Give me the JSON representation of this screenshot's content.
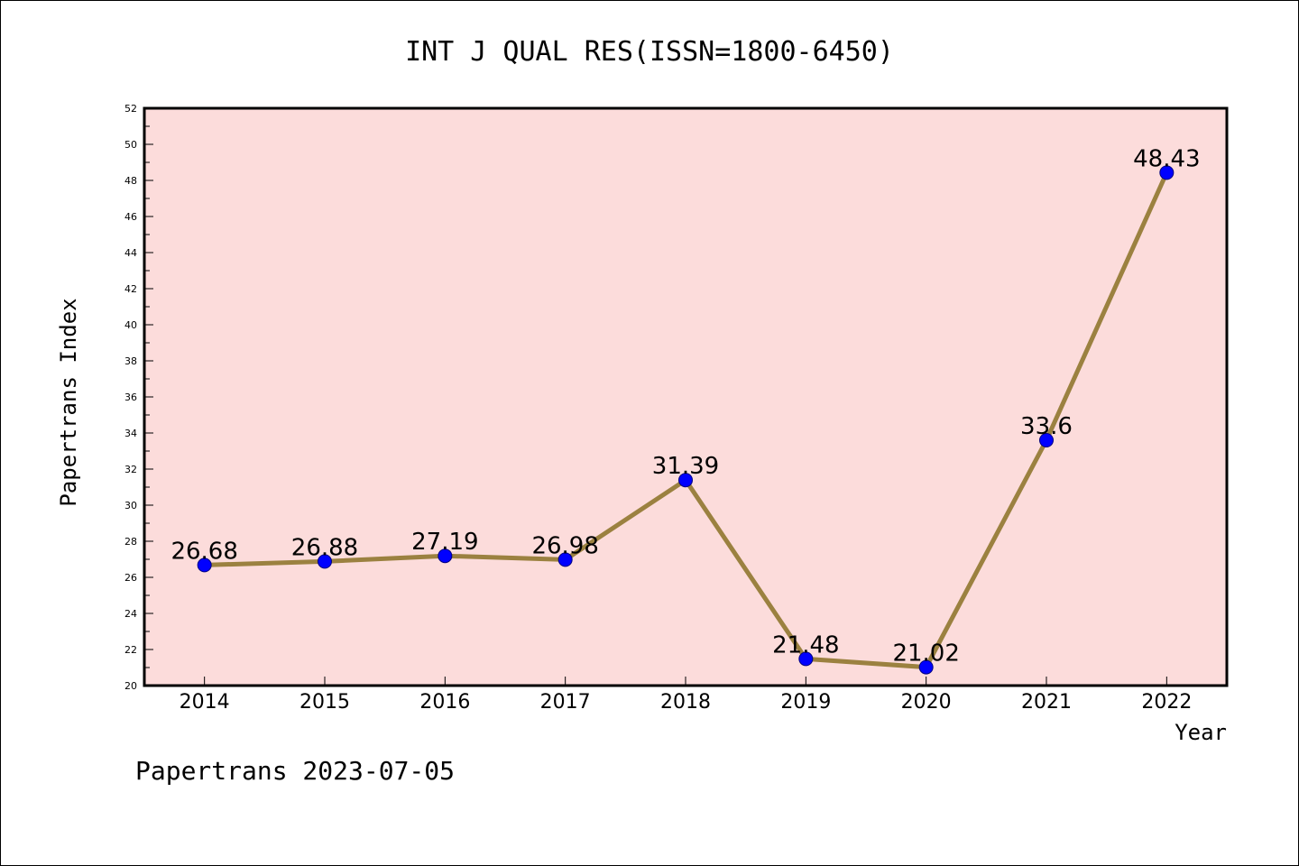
{
  "chart_data": {
    "type": "line",
    "title": "INT J QUAL RES(ISSN=1800-6450)",
    "xlabel": "Year",
    "ylabel": "Papertrans Index",
    "categories": [
      "2014",
      "2015",
      "2016",
      "2017",
      "2018",
      "2019",
      "2020",
      "2021",
      "2022"
    ],
    "series": [
      {
        "values": [
          26.68,
          26.88,
          27.19,
          26.98,
          31.39,
          21.48,
          21.02,
          33.6,
          48.43
        ],
        "data_labels": [
          "26.68",
          "26.88",
          "27.19",
          "26.98",
          "31.39",
          "21.48",
          "21.02",
          "33.6",
          "48.43"
        ]
      }
    ],
    "ylim": [
      20,
      52
    ],
    "yticks": [
      "20",
      "22",
      "24",
      "26",
      "28",
      "30",
      "32",
      "34",
      "36",
      "38",
      "40",
      "42",
      "44",
      "46",
      "48",
      "50",
      "52"
    ],
    "grid": false,
    "legend": "none"
  },
  "footer": "Papertrans 2023-07-05",
  "colors": {
    "plot_background": "#fcdcdb",
    "line": "#9b8140",
    "marker": "#0000ff"
  }
}
